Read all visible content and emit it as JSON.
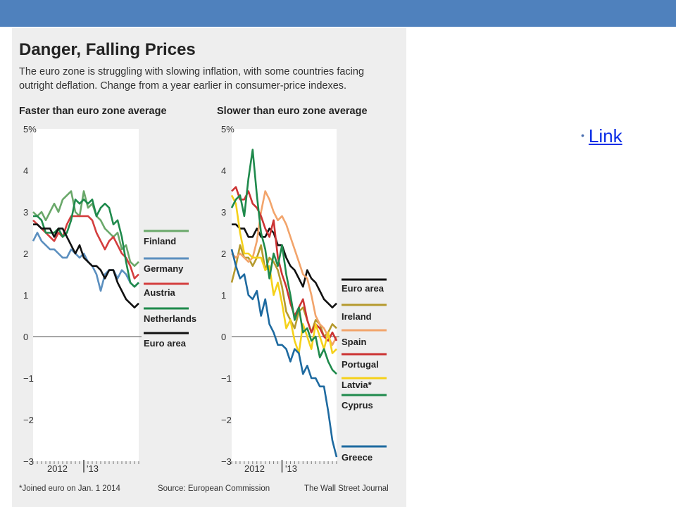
{
  "page": {
    "header_color": "#4f81bd",
    "link_label": "Link"
  },
  "figure": {
    "title": "Danger, Falling Prices",
    "subtitle_line1": "The euro zone is struggling with slowing inflation, with some countries facing",
    "subtitle_line2": "outright deflation. Change from a year earlier in consumer-price indexes.",
    "footnote": "*Joined euro on Jan. 1 2014",
    "source": "Source: European Commission",
    "publisher": "The Wall Street Journal"
  },
  "chart_data": [
    {
      "type": "line",
      "title": "Faster than euro zone average",
      "xlabel": "",
      "ylabel": "",
      "x_tick_labels": [
        "2012",
        "'13"
      ],
      "ylim": [
        -3,
        5
      ],
      "y_ticks": [
        "5%",
        "4",
        "3",
        "2",
        "1",
        "0",
        "−1",
        "−2",
        "−3"
      ],
      "grid": false,
      "legend_position": "right",
      "series": [
        {
          "name": "Finland",
          "color": "#6aa86a",
          "values": [
            3.0,
            2.9,
            3.0,
            2.8,
            3.0,
            3.2,
            3.0,
            3.3,
            3.4,
            3.5,
            3.0,
            2.9,
            3.5,
            3.1,
            3.2,
            2.9,
            2.8,
            2.6,
            2.5,
            2.4,
            2.5,
            2.1,
            2.2,
            1.8,
            1.7,
            1.8
          ]
        },
        {
          "name": "Germany",
          "color": "#5b8fbf",
          "values": [
            2.3,
            2.5,
            2.3,
            2.2,
            2.1,
            2.1,
            2.0,
            1.9,
            1.9,
            2.1,
            2.0,
            1.9,
            2.0,
            1.8,
            1.7,
            1.5,
            1.1,
            1.5,
            1.6,
            1.6,
            1.4,
            1.6,
            1.5,
            1.3,
            1.2,
            1.3
          ]
        },
        {
          "name": "Austria",
          "color": "#d43e3e",
          "values": [
            2.8,
            2.7,
            2.6,
            2.5,
            2.4,
            2.3,
            2.5,
            2.4,
            2.7,
            2.9,
            2.9,
            2.9,
            2.9,
            2.9,
            2.8,
            2.5,
            2.3,
            2.1,
            2.3,
            2.4,
            2.2,
            2.0,
            1.9,
            1.7,
            1.4,
            1.5
          ]
        },
        {
          "name": "Netherlands",
          "color": "#1f8a4c",
          "values": [
            2.9,
            2.9,
            2.8,
            2.5,
            2.5,
            2.5,
            2.6,
            2.4,
            2.5,
            2.8,
            3.3,
            3.2,
            3.3,
            3.2,
            3.3,
            2.9,
            3.1,
            3.2,
            3.1,
            2.7,
            2.8,
            2.4,
            1.8,
            1.3,
            1.2,
            1.3
          ]
        },
        {
          "name": "Euro area",
          "color": "#111111",
          "values": [
            2.7,
            2.7,
            2.6,
            2.6,
            2.6,
            2.4,
            2.6,
            2.6,
            2.4,
            2.2,
            2.0,
            2.2,
            1.9,
            1.8,
            1.7,
            1.7,
            1.6,
            1.4,
            1.6,
            1.6,
            1.3,
            1.1,
            0.9,
            0.8,
            0.7,
            0.8
          ]
        }
      ]
    },
    {
      "type": "line",
      "title": "Slower than euro zone average",
      "xlabel": "",
      "ylabel": "",
      "x_tick_labels": [
        "2012",
        "'13"
      ],
      "ylim": [
        -3,
        5
      ],
      "y_ticks": [
        "5%",
        "4",
        "3",
        "2",
        "1",
        "0",
        "−1",
        "−2",
        "−3"
      ],
      "grid": false,
      "legend_position": "right",
      "series": [
        {
          "name": "Euro area",
          "color": "#111111",
          "values": [
            2.7,
            2.7,
            2.6,
            2.6,
            2.4,
            2.4,
            2.6,
            2.4,
            2.4,
            2.6,
            2.5,
            2.2,
            2.2,
            1.9,
            1.7,
            1.6,
            1.4,
            1.2,
            1.6,
            1.4,
            1.3,
            1.1,
            0.9,
            0.8,
            0.7,
            0.8
          ]
        },
        {
          "name": "Ireland",
          "color": "#b59a2e",
          "values": [
            1.3,
            1.7,
            2.2,
            1.9,
            1.9,
            1.7,
            1.9,
            2.2,
            1.6,
            1.9,
            1.8,
            1.6,
            1.2,
            0.6,
            0.4,
            0.2,
            0.6,
            0.7,
            0.4,
            0.1,
            0.4,
            0.3,
            0.0,
            0.1,
            0.3,
            0.2
          ]
        },
        {
          "name": "Spain",
          "color": "#f2a46b",
          "values": [
            2.0,
            1.9,
            2.0,
            1.9,
            1.8,
            1.9,
            2.3,
            3.0,
            3.5,
            3.3,
            3.0,
            2.8,
            2.9,
            2.7,
            2.4,
            2.1,
            1.8,
            1.5,
            1.4,
            1.0,
            0.5,
            0.3,
            0.2,
            0.0,
            -0.2,
            0.0
          ]
        },
        {
          "name": "Portugal",
          "color": "#cc3333",
          "values": [
            3.5,
            3.6,
            3.3,
            3.3,
            3.5,
            3.2,
            3.1,
            2.9,
            2.6,
            2.4,
            2.8,
            1.9,
            1.5,
            1.2,
            0.8,
            0.5,
            0.7,
            0.9,
            0.4,
            0.1,
            0.3,
            0.2,
            0.0,
            -0.1,
            0.1,
            -0.1
          ]
        },
        {
          "name": "Latvia*",
          "color": "#f5d11a",
          "values": [
            3.4,
            3.2,
            2.5,
            2.0,
            2.0,
            1.9,
            1.9,
            1.9,
            1.6,
            1.7,
            1.0,
            1.3,
            0.8,
            0.2,
            0.4,
            -0.1,
            -0.4,
            0.3,
            0.0,
            -0.3,
            0.3,
            0.0,
            -0.3,
            0.1,
            -0.4,
            -0.3
          ]
        },
        {
          "name": "Cyprus",
          "color": "#1f8a4c",
          "values": [
            3.1,
            3.3,
            3.4,
            2.9,
            3.8,
            4.5,
            3.4,
            2.5,
            2.1,
            1.4,
            2.0,
            1.7,
            2.2,
            1.5,
            1.0,
            0.4,
            0.7,
            0.1,
            0.2,
            -0.1,
            0.0,
            -0.5,
            -0.3,
            -0.6,
            -0.8,
            -0.9
          ]
        },
        {
          "name": "Greece",
          "color": "#1e6aa0",
          "values": [
            2.1,
            1.7,
            1.4,
            1.5,
            1.0,
            0.9,
            1.1,
            0.5,
            0.9,
            0.3,
            0.1,
            -0.2,
            -0.2,
            -0.3,
            -0.6,
            -0.3,
            -0.4,
            -0.9,
            -0.7,
            -1.0,
            -1.0,
            -1.2,
            -1.2,
            -1.8,
            -2.5,
            -2.9
          ]
        }
      ]
    }
  ]
}
